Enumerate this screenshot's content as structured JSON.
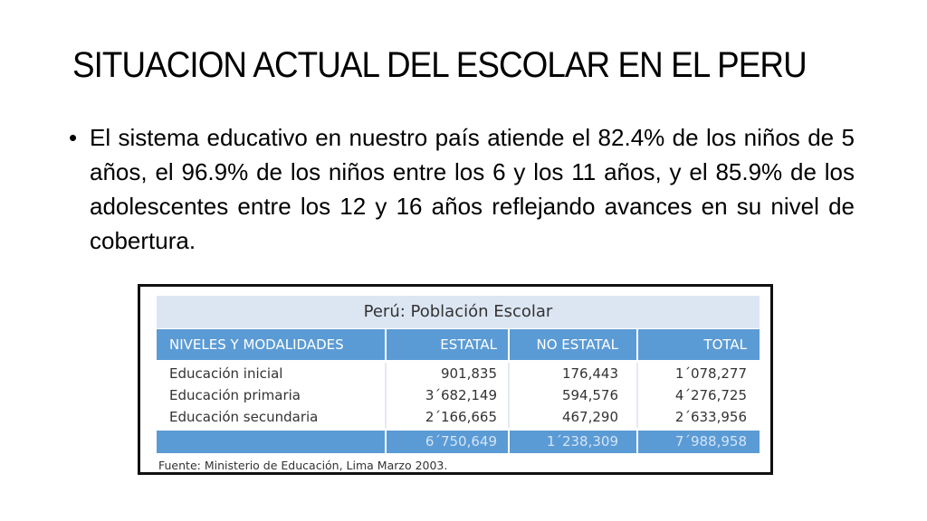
{
  "slide": {
    "title": "SITUACION ACTUAL DEL ESCOLAR EN EL PERU",
    "bullet_symbol": "•",
    "bullet_text": "El sistema educativo en nuestro país atiende el 82.4% de los niños de 5 años, el 96.9% de los niños entre los 6 y los 11 años, y el 85.9% de los adolescentes entre los 12 y 16 años reflejando avances en su nivel de cobertura."
  },
  "table": {
    "title": "Perú: Población Escolar",
    "headers": [
      "NIVELES Y MODALIDADES",
      "ESTATAL",
      "NO ESTATAL",
      "TOTAL"
    ],
    "rows": [
      [
        "Educación inicial",
        "901,835",
        "176,443",
        "1´078,277"
      ],
      [
        "Educación primaria",
        "3´682,149",
        "594,576",
        "4´276,725"
      ],
      [
        "Educación secundaria",
        "2´166,665",
        "467,290",
        "2´633,956"
      ]
    ],
    "totals": [
      "",
      "6´750,649",
      "1´238,309",
      "7´988,958"
    ],
    "source": "Fuente: Ministerio de Educación, Lima Marzo 2003."
  },
  "colors": {
    "header_blue": "#5b9bd5",
    "title_band": "#dce6f3"
  }
}
